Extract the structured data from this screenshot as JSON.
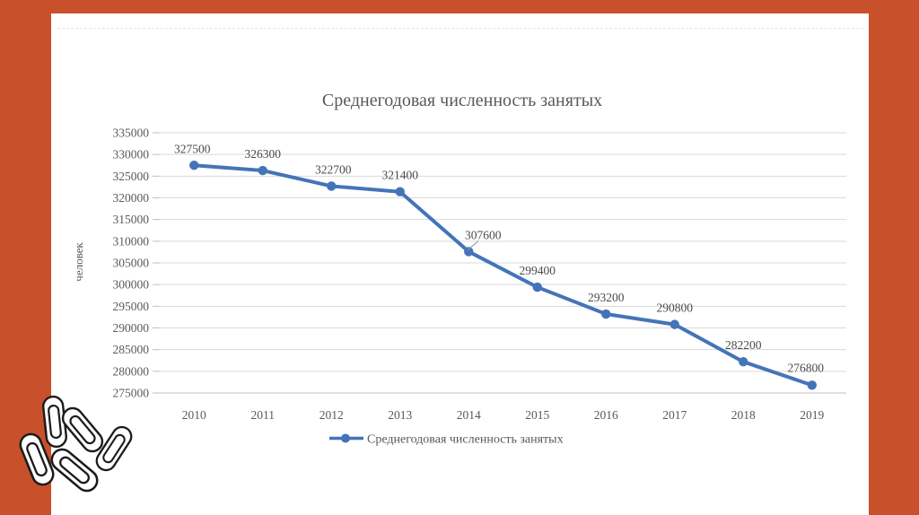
{
  "colors": {
    "accent": "#C8512B",
    "series": "#4474B8",
    "grid": "#D9D9D9",
    "axis": "#BFBFBF",
    "text": "#595959"
  },
  "chart_data": {
    "type": "line",
    "title": "Среднегодовая численность занятых",
    "xlabel": "",
    "ylabel": "человек",
    "categories": [
      "2010",
      "2011",
      "2012",
      "2013",
      "2014",
      "2015",
      "2016",
      "2017",
      "2018",
      "2019"
    ],
    "series": [
      {
        "name": "Среднегодовая численность занятых",
        "values": [
          327500,
          326300,
          322700,
          321400,
          307600,
          299400,
          293200,
          290800,
          282200,
          276800
        ]
      }
    ],
    "ylim": [
      275000,
      335000
    ],
    "ytick_step": 5000,
    "grid": true,
    "data_labels": true,
    "legend_position": "bottom",
    "marker": "circle"
  }
}
